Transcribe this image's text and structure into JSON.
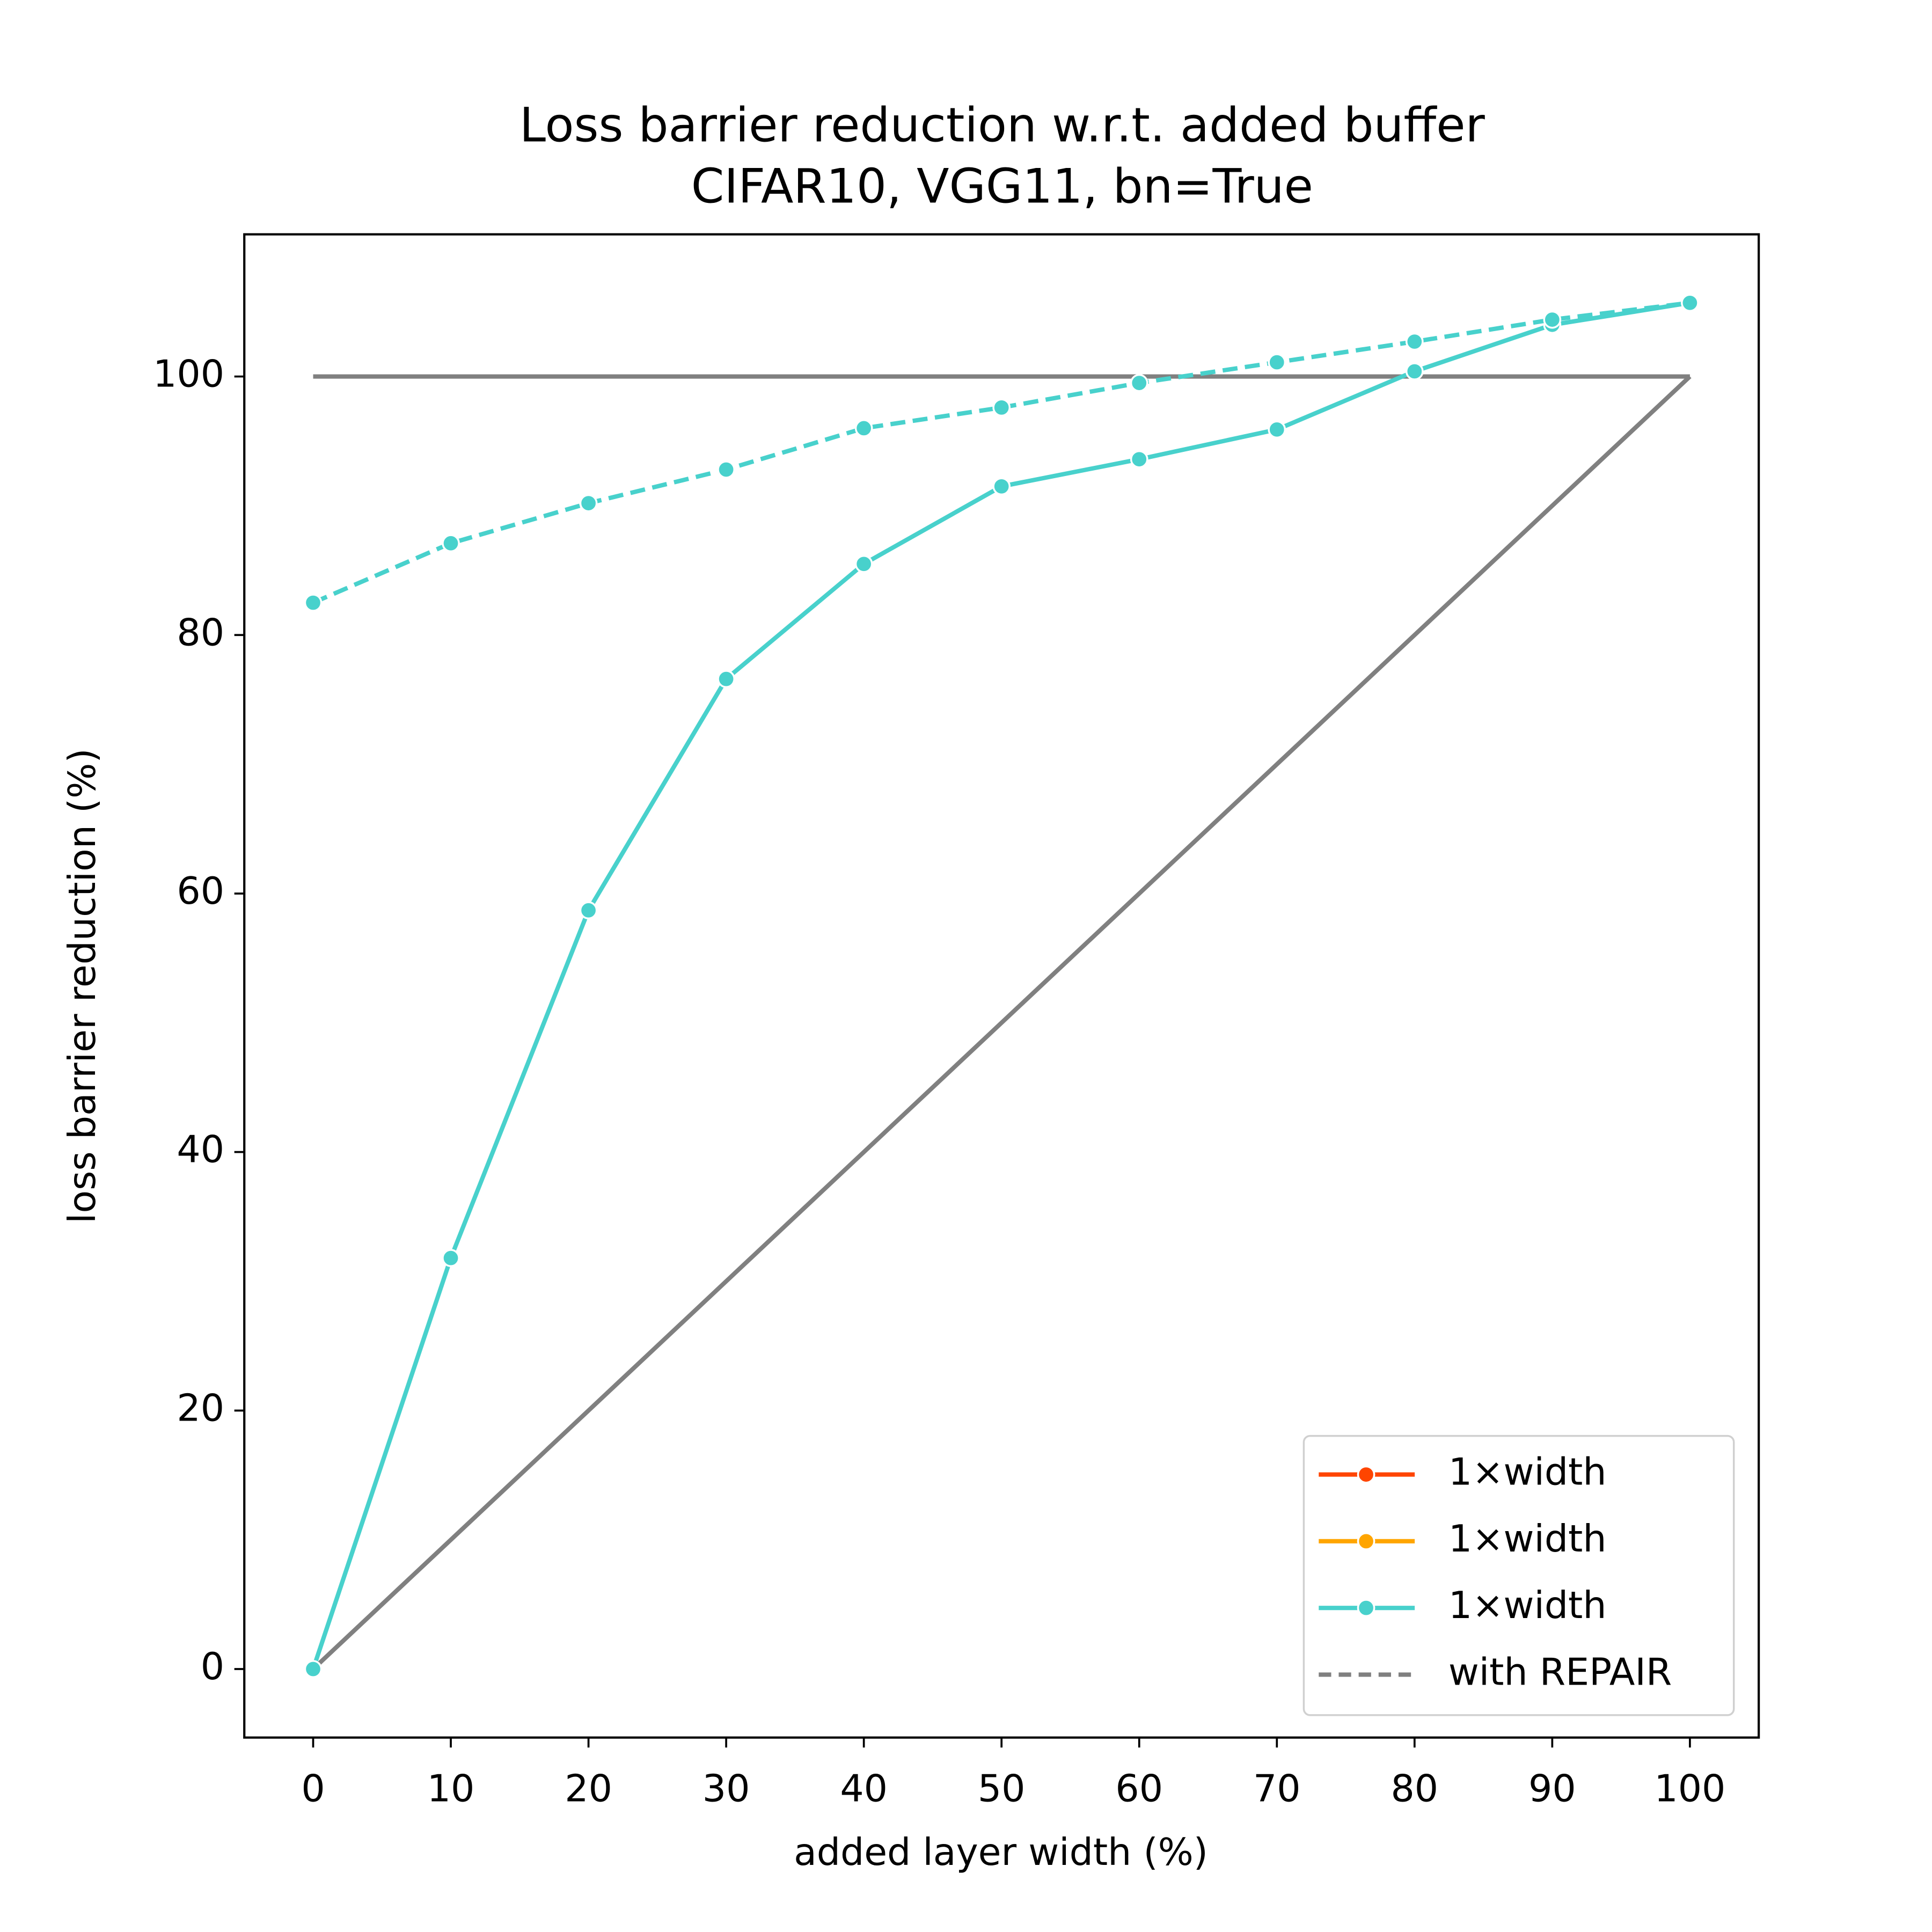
{
  "chart_data": {
    "type": "line",
    "title": "Loss barrier reduction w.r.t. added buffer",
    "subtitle": "CIFAR10, VGG11, bn=True",
    "x_label": "added layer width (%)",
    "y_label": "loss barrier reduction (%)",
    "x": [
      0,
      10,
      20,
      30,
      40,
      50,
      60,
      70,
      80,
      90,
      100
    ],
    "xlim": [
      -5,
      105
    ],
    "ylim": [
      -5.3,
      111
    ],
    "xticks": [
      0,
      10,
      20,
      30,
      40,
      50,
      60,
      70,
      80,
      90,
      100
    ],
    "yticks": [
      0,
      20,
      40,
      60,
      80,
      100
    ],
    "series": [
      {
        "color": "#808080",
        "style": "solid",
        "marker": false,
        "x": [
          0,
          100
        ],
        "values": [
          100,
          100
        ]
      },
      {
        "color": "#808080",
        "style": "solid",
        "marker": false,
        "x": [
          0,
          100
        ],
        "values": [
          0,
          100
        ]
      },
      {
        "color": "#48d1cc",
        "style": "solid",
        "marker": true,
        "values": [
          0,
          31.8,
          58.7,
          76.6,
          85.5,
          91.5,
          93.6,
          95.9,
          100.4,
          104.0,
          105.7
        ]
      },
      {
        "color": "#48d1cc",
        "style": "dashed",
        "marker": true,
        "values": [
          82.5,
          87.1,
          90.2,
          92.8,
          96.0,
          97.6,
          99.5,
          101.1,
          102.7,
          104.4,
          105.7
        ]
      }
    ],
    "legend": {
      "position": "lower right",
      "entries": [
        {
          "label": "1×width",
          "color": "#ff4500",
          "style": "solid",
          "marker": true
        },
        {
          "label": "1×width",
          "color": "#ffa500",
          "style": "solid",
          "marker": true
        },
        {
          "label": "1×width",
          "color": "#48d1cc",
          "style": "solid",
          "marker": true
        },
        {
          "label": "with REPAIR",
          "color": "#808080",
          "style": "dashed",
          "marker": false
        }
      ]
    }
  }
}
